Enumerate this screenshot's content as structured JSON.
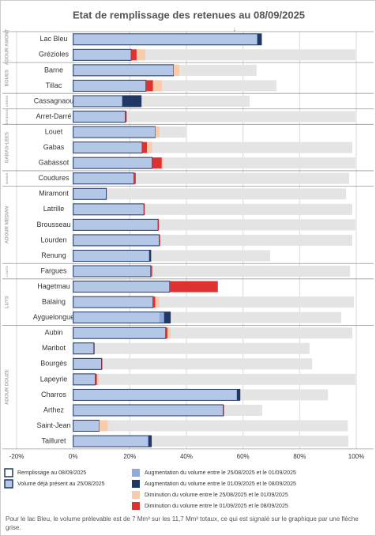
{
  "chart_data": {
    "type": "bar",
    "orientation": "horizontal",
    "title": "Etat de remplissage des retenues au 08/09/2025",
    "categories": [
      "Lac Bleu",
      "Grézioles",
      "Barne",
      "Tillac",
      "Cassagnaou",
      "Arret-Darré",
      "Louet",
      "Gabas",
      "Gabassot",
      "Coudures",
      "Miramont",
      "Latrille",
      "Brousseau",
      "Lourden",
      "Renung",
      "Fargues",
      "Hagetmau",
      "Balaing",
      "Ayguelongue",
      "Aubin",
      "Maribot",
      "Bourgès",
      "Lapeyrie",
      "Charros",
      "Arthez",
      "Saint-Jean",
      "Tailluret"
    ],
    "groups": [
      {
        "label": "ADOUR AMONT",
        "rows": 2
      },
      {
        "label": "BOUES",
        "rows": 2
      },
      {
        "label": "ARROS",
        "rows": 1
      },
      {
        "label": "ESTEOUS",
        "rows": 1
      },
      {
        "label": "GABAS-LEES",
        "rows": 3
      },
      {
        "label": "BAHUS",
        "rows": 1
      },
      {
        "label": "ADOUR MEDIAN",
        "rows": 5
      },
      {
        "label": "LOUTS",
        "rows": 1
      },
      {
        "label": "LUYS",
        "rows": 3
      },
      {
        "label": "ADOUR DOUZE",
        "rows": 8
      }
    ],
    "fill_outline": {
      "name": "Remplissage au 08/09/2025",
      "color": "#1f3864"
    },
    "series": [
      {
        "name": "Volume déjà présent au 25/08/2025",
        "color": "#b4c7e7",
        "values": [
          65,
          20.5,
          35.5,
          25.7,
          17.3,
          18.4,
          29,
          24.4,
          27.9,
          21.5,
          11.7,
          25,
          30,
          30.4,
          26.8,
          27.4,
          34.1,
          28.2,
          30.4,
          32.7,
          7.3,
          10,
          7.8,
          57.8,
          53,
          9.2,
          26.5
        ]
      },
      {
        "name": "Augmentation du volume entre le 25/08/2025 et le 01/09/2025",
        "color": "#8faadc",
        "values": [
          null,
          null,
          null,
          null,
          null,
          null,
          null,
          null,
          null,
          null,
          null,
          null,
          null,
          null,
          null,
          null,
          null,
          null,
          1.7,
          null,
          null,
          null,
          null,
          null,
          null,
          null,
          null
        ]
      },
      {
        "name": "Augmentation du volume entre le 01/09/2025 et le 08/09/2025",
        "color": "#203864",
        "values": [
          1.5,
          null,
          null,
          null,
          6.7,
          null,
          null,
          null,
          null,
          null,
          null,
          null,
          null,
          null,
          0.6,
          null,
          null,
          null,
          2.2,
          null,
          null,
          null,
          null,
          1.1,
          null,
          null,
          1.1
        ]
      },
      {
        "name": "Diminution du volume entre le 25/08/2025 et le 01/09/2025",
        "color": "#f8cbad",
        "values": [
          null,
          3.1,
          2,
          3.1,
          null,
          null,
          1.5,
          1.7,
          0.5,
          null,
          null,
          null,
          null,
          null,
          null,
          null,
          null,
          1.4,
          null,
          1.1,
          null,
          null,
          0.6,
          null,
          null,
          3,
          null
        ]
      },
      {
        "name": "Diminution du volume entre le 01/09/2025 et le 08/09/2025",
        "color": "#e03131",
        "values": [
          null,
          1.9,
          null,
          2.5,
          null,
          0.5,
          null,
          1.7,
          3.4,
          0.6,
          null,
          0.3,
          0.3,
          0.3,
          null,
          0.5,
          17,
          0.8,
          null,
          0.6,
          0.3,
          0.3,
          0.6,
          null,
          0.3,
          null,
          null
        ]
      }
    ],
    "capacity": {
      "color": "#e4e4e4",
      "values": [
        null,
        99.7,
        64.8,
        71.8,
        62.3,
        99.7,
        40.2,
        98.6,
        99.7,
        97.5,
        96.4,
        98.6,
        99.7,
        98.6,
        69.6,
        97.8,
        null,
        99.2,
        94.7,
        98.6,
        83.5,
        84.4,
        99.7,
        90,
        66.8,
        97,
        97.2
      ]
    },
    "arrow": {
      "text": "↓",
      "value": 57
    },
    "xlim": [
      -20,
      100
    ],
    "xticks": [
      {
        "value": -20,
        "label": "-20%"
      },
      {
        "value": 0,
        "label": "0%"
      },
      {
        "value": 20,
        "label": "20%"
      },
      {
        "value": 40,
        "label": "40%"
      },
      {
        "value": 60,
        "label": "60%"
      },
      {
        "value": 80,
        "label": "80%"
      },
      {
        "value": 100,
        "label": "100%"
      }
    ],
    "grid": true,
    "note": "Pour le lac Bleu, le volume prélevable est de 7 Mm³ sur les 11,7 Mm³ totaux, ce qui est signalé sur le graphique par une flèche grise."
  }
}
